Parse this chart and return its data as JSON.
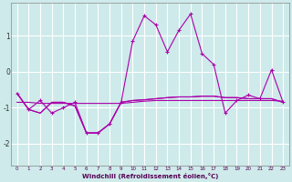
{
  "xlabel": "Windchill (Refroidissement éolien,°C)",
  "x": [
    0,
    1,
    2,
    3,
    4,
    5,
    6,
    7,
    8,
    9,
    10,
    11,
    12,
    13,
    14,
    15,
    16,
    17,
    18,
    19,
    20,
    21,
    22,
    23
  ],
  "line_main": [
    -0.6,
    -1.05,
    -0.8,
    -1.15,
    -1.0,
    -0.85,
    -1.7,
    -1.7,
    -1.45,
    -0.85,
    0.85,
    1.55,
    1.3,
    0.55,
    1.15,
    1.6,
    0.5,
    0.2,
    -1.15,
    -0.8,
    -0.65,
    -0.75,
    0.05,
    -0.85
  ],
  "line_ref1": [
    -0.6,
    -1.05,
    -1.15,
    -0.85,
    -0.85,
    -0.95,
    -1.7,
    -1.7,
    -1.45,
    -0.85,
    -0.8,
    -0.78,
    -0.75,
    -0.72,
    -0.7,
    -0.7,
    -0.68,
    -0.68,
    -0.72,
    -0.72,
    -0.75,
    -0.75,
    -0.75,
    -0.85
  ],
  "line_ref2": [
    -0.6,
    -1.05,
    -1.15,
    -0.85,
    -0.85,
    -0.95,
    -1.7,
    -1.7,
    -1.45,
    -0.85,
    -0.8,
    -0.78,
    -0.75,
    -0.72,
    -0.7,
    -0.7,
    -0.68,
    -0.68,
    -0.72,
    -0.72,
    -0.75,
    -0.75,
    -0.75,
    -0.85
  ],
  "line_ref3": [
    -0.85,
    -0.85,
    -0.88,
    -0.88,
    -0.88,
    -0.88,
    -0.88,
    -0.88,
    -0.88,
    -0.88,
    -0.85,
    -0.82,
    -0.8,
    -0.8,
    -0.8,
    -0.8,
    -0.8,
    -0.8,
    -0.8,
    -0.8,
    -0.8,
    -0.8,
    -0.8,
    -0.82
  ],
  "bg_color": "#ceeaea",
  "line_color": "#aa00aa",
  "grid_color": "#aadddd",
  "ylim": [
    -2.6,
    1.9
  ],
  "yticks": [
    -2,
    -1,
    0,
    1
  ],
  "xlim": [
    -0.5,
    23.5
  ]
}
